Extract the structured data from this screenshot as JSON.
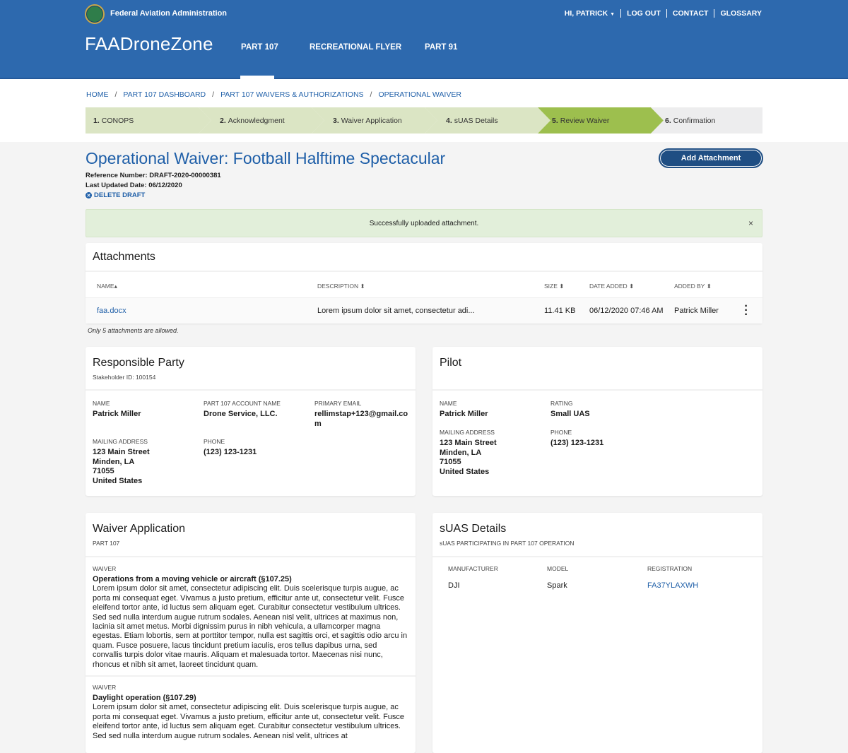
{
  "header": {
    "agency": "Federal Aviation Administration",
    "brand": "FAADroneZone",
    "nav": [
      "PART 107",
      "RECREATIONAL FLYER",
      "PART 91"
    ],
    "active_nav": "PART 107",
    "user": "HI, PATRICK",
    "links": [
      "LOG OUT",
      "CONTACT",
      "GLOSSARY"
    ]
  },
  "breadcrumb": [
    "HOME",
    "PART 107 DASHBOARD",
    "PART 107 WAIVERS & AUTHORIZATIONS",
    "OPERATIONAL WAIVER"
  ],
  "steps": [
    {
      "num": "1.",
      "label": "CONOPS",
      "state": "done"
    },
    {
      "num": "2.",
      "label": "Acknowledgment",
      "state": "done"
    },
    {
      "num": "3.",
      "label": "Waiver Application",
      "state": "done"
    },
    {
      "num": "4.",
      "label": "sUAS Details",
      "state": "done"
    },
    {
      "num": "5.",
      "label": "Review Waiver",
      "state": "active"
    },
    {
      "num": "6.",
      "label": "Confirmation",
      "state": "pending"
    }
  ],
  "colors": {
    "header": "#2d69ae",
    "link": "#1f5fa8",
    "step_done": "#dbe5c4",
    "step_active": "#9dbf4e",
    "step_pending": "#ededee",
    "button": "#1f4e83",
    "alert": "#e2efda"
  },
  "page": {
    "title": "Operational Waiver: Football Halftime Spectacular",
    "reference": "Reference Number: DRAFT-2020-00000381",
    "updated": "Last Updated Date: 06/12/2020",
    "delete": "DELETE DRAFT",
    "add_attachment": "Add Attachment"
  },
  "alert": {
    "message": "Successfully uploaded attachment.",
    "close": "×"
  },
  "attachments": {
    "title": "Attachments",
    "columns": [
      "NAME",
      "DESCRIPTION",
      "SIZE",
      "DATE ADDED",
      "ADDED BY"
    ],
    "sort_asc": "▴",
    "sort": "⬍",
    "rows": [
      {
        "name": "faa.docx",
        "description": "Lorem ipsum dolor sit amet, consectetur adi...",
        "size": "11.41 KB",
        "date": "06/12/2020 07:46 AM",
        "added_by": "Patrick Miller"
      }
    ],
    "note": "Only 5 attachments are allowed."
  },
  "responsible": {
    "title": "Responsible Party",
    "sub": "Stakeholder ID: 100154",
    "name_label": "NAME",
    "name": "Patrick Miller",
    "account_label": "PART 107 ACCOUNT NAME",
    "account": "Drone Service, LLC.",
    "email_label": "PRIMARY EMAIL",
    "email": "rellimstap+123@gmail.com",
    "address_label": "MAILING ADDRESS",
    "address": [
      "123 Main Street",
      "Minden, LA",
      "71055",
      "United States"
    ],
    "phone_label": "PHONE",
    "phone": "(123) 123-1231"
  },
  "pilot": {
    "title": "Pilot",
    "name_label": "NAME",
    "name": "Patrick Miller",
    "rating_label": "RATING",
    "rating": "Small UAS",
    "address_label": "MAILING ADDRESS",
    "address": [
      "123 Main Street",
      "Minden, LA",
      "71055",
      "United States"
    ],
    "phone_label": "PHONE",
    "phone": "(123) 123-1231"
  },
  "waiver_app": {
    "title": "Waiver Application",
    "sub": "PART 107",
    "waivers": [
      {
        "label": "WAIVER",
        "title": "Operations from a moving vehicle or aircraft (§107.25)",
        "text": "Lorem ipsum dolor sit amet, consectetur adipiscing elit. Duis scelerisque turpis augue, ac porta mi consequat eget. Vivamus a justo pretium, efficitur ante ut, consectetur velit. Fusce eleifend tortor ante, id luctus sem aliquam eget. Curabitur consectetur vestibulum ultrices. Sed sed nulla interdum augue rutrum sodales. Aenean nisl velit, ultrices at maximus non, lacinia sit amet metus. Morbi dignissim purus in nibh vehicula, a ullamcorper magna egestas. Etiam lobortis, sem at porttitor tempor, nulla est sagittis orci, et sagittis odio arcu in quam. Fusce posuere, lacus tincidunt pretium iaculis, eros tellus dapibus urna, sed convallis turpis dolor vitae mauris. Aliquam et malesuada tortor. Maecenas nisi nunc, rhoncus et nibh sit amet, laoreet tincidunt quam."
      },
      {
        "label": "WAIVER",
        "title": "Daylight operation (§107.29)",
        "text": "Lorem ipsum dolor sit amet, consectetur adipiscing elit. Duis scelerisque turpis augue, ac porta mi consequat eget. Vivamus a justo pretium, efficitur ante ut, consectetur velit. Fusce eleifend tortor ante, id luctus sem aliquam eget. Curabitur consectetur vestibulum ultrices. Sed sed nulla interdum augue rutrum sodales. Aenean nisl velit, ultrices at"
      }
    ]
  },
  "suas": {
    "title": "sUAS Details",
    "sub": "sUAS PARTICIPATING IN PART 107 OPERATION",
    "columns": [
      "MANUFACTURER",
      "MODEL",
      "REGISTRATION"
    ],
    "rows": [
      {
        "manufacturer": "DJI",
        "model": "Spark",
        "registration": "FA37YLAXWH"
      }
    ]
  }
}
